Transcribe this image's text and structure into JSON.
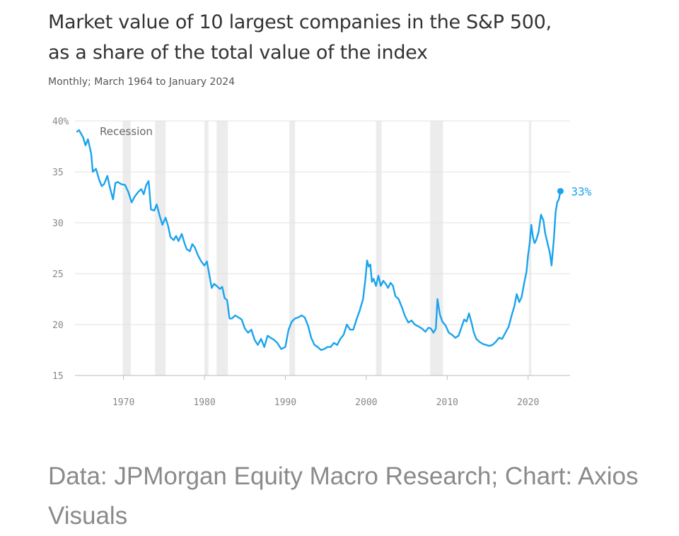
{
  "header": {
    "title_line1": "Market value of 10 largest companies in the S&P 500,",
    "title_line2": "as a share of the total value of the index",
    "subtitle": "Monthly; March 1964 to January 2024"
  },
  "footer": {
    "source": "Data: JPMorgan Equity Macro Research; Chart: Axios Visuals"
  },
  "colors": {
    "line": "#1aa3ee",
    "recession": "#ececec",
    "grid": "#e2e2e2",
    "axis": "#bbbbbb"
  },
  "chart_data": {
    "type": "line",
    "title": "Market value of 10 largest companies in the S&P 500, as a share of the total value of the index",
    "subtitle": "Monthly; March 1964 to January 2024",
    "ylim": [
      15,
      40
    ],
    "xlim": [
      1964,
      2024.2
    ],
    "y_ticks": [
      15,
      20,
      25,
      30,
      35,
      40
    ],
    "y_tick_labels": [
      "15",
      "20",
      "25",
      "30",
      "35",
      "40%"
    ],
    "x_ticks": [
      1970,
      1980,
      1990,
      2000,
      2010,
      2020
    ],
    "x_tick_labels": [
      "1970",
      "1980",
      "1990",
      "2000",
      "2010",
      "2020"
    ],
    "grid": "horizontal",
    "recession_label": "Recession",
    "recessions": [
      [
        1969.9,
        1970.9
      ],
      [
        1973.9,
        1975.2
      ],
      [
        1980.0,
        1980.5
      ],
      [
        1981.5,
        1982.9
      ],
      [
        1990.5,
        1991.2
      ],
      [
        2001.2,
        2001.9
      ],
      [
        2007.9,
        2009.5
      ],
      [
        2020.1,
        2020.4
      ]
    ],
    "end_label": "33%",
    "series": [
      {
        "values": [
          [
            1964.2,
            38.9
          ],
          [
            1964.5,
            39.1
          ],
          [
            1965.0,
            38.4
          ],
          [
            1965.3,
            37.6
          ],
          [
            1965.6,
            38.2
          ],
          [
            1966.0,
            36.8
          ],
          [
            1966.2,
            35.0
          ],
          [
            1966.6,
            35.3
          ],
          [
            1967.0,
            34.2
          ],
          [
            1967.3,
            33.6
          ],
          [
            1967.6,
            33.8
          ],
          [
            1968.0,
            34.6
          ],
          [
            1968.3,
            33.5
          ],
          [
            1968.7,
            32.3
          ],
          [
            1969.0,
            33.9
          ],
          [
            1969.3,
            34.0
          ],
          [
            1969.7,
            33.8
          ],
          [
            1970.2,
            33.7
          ],
          [
            1970.6,
            33.0
          ],
          [
            1971.0,
            32.0
          ],
          [
            1971.4,
            32.6
          ],
          [
            1971.8,
            33.0
          ],
          [
            1972.2,
            33.3
          ],
          [
            1972.5,
            32.8
          ],
          [
            1972.8,
            33.7
          ],
          [
            1973.1,
            34.1
          ],
          [
            1973.4,
            31.3
          ],
          [
            1973.8,
            31.2
          ],
          [
            1974.1,
            31.8
          ],
          [
            1974.5,
            30.6
          ],
          [
            1974.8,
            29.8
          ],
          [
            1975.2,
            30.5
          ],
          [
            1975.5,
            29.7
          ],
          [
            1975.8,
            28.6
          ],
          [
            1976.2,
            28.3
          ],
          [
            1976.5,
            28.7
          ],
          [
            1976.8,
            28.2
          ],
          [
            1977.2,
            28.9
          ],
          [
            1977.5,
            28.1
          ],
          [
            1977.8,
            27.4
          ],
          [
            1978.2,
            27.2
          ],
          [
            1978.5,
            27.9
          ],
          [
            1978.8,
            27.6
          ],
          [
            1979.2,
            26.8
          ],
          [
            1979.6,
            26.2
          ],
          [
            1980.0,
            25.8
          ],
          [
            1980.3,
            26.2
          ],
          [
            1980.6,
            24.9
          ],
          [
            1980.9,
            23.6
          ],
          [
            1981.2,
            24.0
          ],
          [
            1981.5,
            23.8
          ],
          [
            1981.9,
            23.5
          ],
          [
            1982.2,
            23.7
          ],
          [
            1982.5,
            22.6
          ],
          [
            1982.8,
            22.4
          ],
          [
            1983.1,
            20.6
          ],
          [
            1983.4,
            20.6
          ],
          [
            1983.8,
            20.9
          ],
          [
            1984.2,
            20.7
          ],
          [
            1984.6,
            20.5
          ],
          [
            1985.0,
            19.6
          ],
          [
            1985.4,
            19.2
          ],
          [
            1985.8,
            19.5
          ],
          [
            1986.2,
            18.5
          ],
          [
            1986.6,
            18.0
          ],
          [
            1987.0,
            18.6
          ],
          [
            1987.4,
            17.8
          ],
          [
            1987.8,
            18.9
          ],
          [
            1988.2,
            18.7
          ],
          [
            1988.6,
            18.5
          ],
          [
            1989.0,
            18.2
          ],
          [
            1989.5,
            17.6
          ],
          [
            1990.0,
            17.8
          ],
          [
            1990.4,
            19.5
          ],
          [
            1990.8,
            20.3
          ],
          [
            1991.2,
            20.6
          ],
          [
            1991.6,
            20.7
          ],
          [
            1992.0,
            20.9
          ],
          [
            1992.4,
            20.7
          ],
          [
            1992.8,
            19.9
          ],
          [
            1993.2,
            18.7
          ],
          [
            1993.6,
            18.0
          ],
          [
            1994.0,
            17.8
          ],
          [
            1994.4,
            17.5
          ],
          [
            1994.8,
            17.6
          ],
          [
            1995.2,
            17.8
          ],
          [
            1995.6,
            17.8
          ],
          [
            1996.0,
            18.2
          ],
          [
            1996.4,
            18.0
          ],
          [
            1996.8,
            18.6
          ],
          [
            1997.2,
            19.0
          ],
          [
            1997.6,
            20.0
          ],
          [
            1998.0,
            19.5
          ],
          [
            1998.4,
            19.5
          ],
          [
            1998.8,
            20.5
          ],
          [
            1999.2,
            21.4
          ],
          [
            1999.6,
            22.5
          ],
          [
            1999.9,
            24.5
          ],
          [
            2000.1,
            26.3
          ],
          [
            2000.3,
            25.7
          ],
          [
            2000.5,
            25.9
          ],
          [
            2000.7,
            24.2
          ],
          [
            2000.9,
            24.5
          ],
          [
            2001.2,
            23.8
          ],
          [
            2001.5,
            24.8
          ],
          [
            2001.8,
            23.8
          ],
          [
            2002.1,
            24.3
          ],
          [
            2002.4,
            24.0
          ],
          [
            2002.7,
            23.6
          ],
          [
            2003.0,
            24.1
          ],
          [
            2003.3,
            23.8
          ],
          [
            2003.6,
            22.8
          ],
          [
            2004.0,
            22.5
          ],
          [
            2004.4,
            21.7
          ],
          [
            2004.8,
            20.8
          ],
          [
            2005.2,
            20.2
          ],
          [
            2005.6,
            20.4
          ],
          [
            2006.0,
            20.0
          ],
          [
            2006.5,
            19.8
          ],
          [
            2006.9,
            19.6
          ],
          [
            2007.3,
            19.3
          ],
          [
            2007.7,
            19.7
          ],
          [
            2008.0,
            19.6
          ],
          [
            2008.3,
            19.2
          ],
          [
            2008.6,
            19.6
          ],
          [
            2008.8,
            22.5
          ],
          [
            2009.1,
            21.0
          ],
          [
            2009.4,
            20.3
          ],
          [
            2009.8,
            19.9
          ],
          [
            2010.2,
            19.2
          ],
          [
            2010.6,
            19.0
          ],
          [
            2011.0,
            18.7
          ],
          [
            2011.4,
            18.9
          ],
          [
            2011.8,
            19.8
          ],
          [
            2012.1,
            20.5
          ],
          [
            2012.4,
            20.3
          ],
          [
            2012.7,
            21.1
          ],
          [
            2013.0,
            20.2
          ],
          [
            2013.3,
            19.2
          ],
          [
            2013.6,
            18.6
          ],
          [
            2014.0,
            18.3
          ],
          [
            2014.4,
            18.1
          ],
          [
            2014.8,
            18.0
          ],
          [
            2015.2,
            17.9
          ],
          [
            2015.6,
            18.0
          ],
          [
            2016.0,
            18.3
          ],
          [
            2016.4,
            18.7
          ],
          [
            2016.8,
            18.6
          ],
          [
            2017.2,
            19.2
          ],
          [
            2017.6,
            19.8
          ],
          [
            2018.0,
            21.0
          ],
          [
            2018.3,
            21.8
          ],
          [
            2018.6,
            23.0
          ],
          [
            2018.9,
            22.2
          ],
          [
            2019.2,
            22.7
          ],
          [
            2019.5,
            24.0
          ],
          [
            2019.8,
            25.2
          ],
          [
            2020.0,
            26.8
          ],
          [
            2020.2,
            28.0
          ],
          [
            2020.4,
            29.8
          ],
          [
            2020.6,
            28.6
          ],
          [
            2020.8,
            28.0
          ],
          [
            2021.0,
            28.3
          ],
          [
            2021.3,
            29.1
          ],
          [
            2021.6,
            30.8
          ],
          [
            2021.9,
            30.2
          ],
          [
            2022.1,
            29.0
          ],
          [
            2022.4,
            28.0
          ],
          [
            2022.7,
            27.0
          ],
          [
            2022.9,
            25.8
          ],
          [
            2023.2,
            28.5
          ],
          [
            2023.4,
            31.0
          ],
          [
            2023.6,
            32.0
          ],
          [
            2023.8,
            32.3
          ],
          [
            2024.0,
            33.1
          ]
        ]
      }
    ]
  }
}
